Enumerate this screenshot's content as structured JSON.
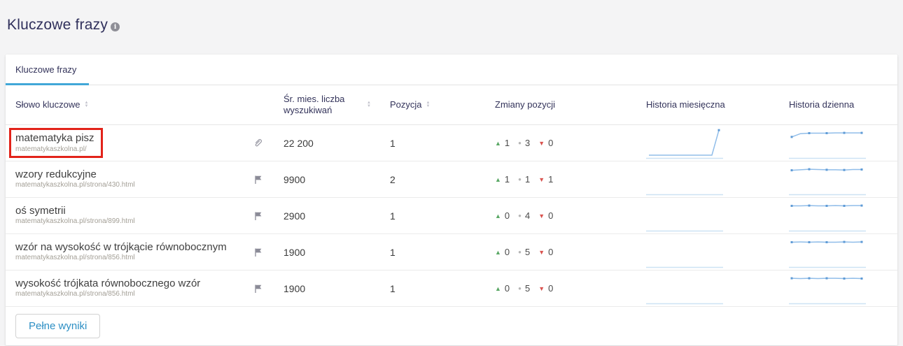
{
  "page": {
    "title": "Kluczowe frazy"
  },
  "tabs": {
    "keywords": {
      "label": "Kluczowe frazy",
      "active": true
    }
  },
  "table": {
    "headers": {
      "keyword": "Słowo kluczowe",
      "volume": "Śr. mies. liczba wyszukiwań",
      "position": "Pozycja",
      "changes": "Zmiany pozycji",
      "monthly": "Historia miesięczna",
      "daily": "Historia dzienna"
    },
    "rows": [
      {
        "keyword": "matematyka pisz",
        "url": "matematykaszkolna.pl/",
        "icon": "link",
        "volume": "22 200",
        "position": "1",
        "up": "1",
        "same": "3",
        "down": "0",
        "highlighted": true,
        "monthly_spark": [
          0.05,
          0.05,
          0.05,
          0.05,
          0.05,
          0.05,
          0.05,
          0.05,
          0.05,
          0.05,
          0.97
        ],
        "daily_spark": [
          0.72,
          0.84,
          0.86,
          0.86,
          0.86,
          0.87,
          0.87,
          0.87,
          0.87
        ]
      },
      {
        "keyword": "wzory redukcyjne",
        "url": "matematykaszkolna.pl/strona/430.html",
        "icon": "flag",
        "volume": "9900",
        "position": "2",
        "up": "1",
        "same": "1",
        "down": "1",
        "highlighted": false,
        "monthly_spark": [],
        "daily_spark": [
          0.83,
          0.85,
          0.87,
          0.86,
          0.85,
          0.85,
          0.84,
          0.86,
          0.86
        ]
      },
      {
        "keyword": "oś symetrii",
        "url": "matematykaszkolna.pl/strona/899.html",
        "icon": "flag",
        "volume": "2900",
        "position": "1",
        "up": "0",
        "same": "4",
        "down": "0",
        "highlighted": false,
        "monthly_spark": [],
        "daily_spark": [
          0.86,
          0.86,
          0.87,
          0.86,
          0.86,
          0.87,
          0.86,
          0.87,
          0.87
        ]
      },
      {
        "keyword": "wzór na wysokość w trójkącie równobocznym",
        "url": "matematykaszkolna.pl/strona/856.html",
        "icon": "flag",
        "volume": "1900",
        "position": "1",
        "up": "0",
        "same": "5",
        "down": "0",
        "highlighted": false,
        "monthly_spark": [],
        "daily_spark": [
          0.86,
          0.87,
          0.86,
          0.87,
          0.86,
          0.86,
          0.87,
          0.86,
          0.87
        ]
      },
      {
        "keyword": "wysokość trójkata równobocznego wzór",
        "url": "matematykaszkolna.pl/strona/856.html",
        "icon": "flag",
        "volume": "1900",
        "position": "1",
        "up": "0",
        "same": "5",
        "down": "0",
        "highlighted": false,
        "monthly_spark": [],
        "daily_spark": [
          0.87,
          0.86,
          0.87,
          0.86,
          0.87,
          0.87,
          0.86,
          0.87,
          0.86
        ]
      }
    ]
  },
  "footer": {
    "full_results_label": "Pełne wyniki"
  },
  "colors": {
    "accent_blue": "#41a7d8",
    "up_green": "#5aa865",
    "down_red": "#d9534f",
    "same_gray": "#b5b5b5",
    "spark_blue": "#90bde9",
    "highlight_red": "#e2231a",
    "button_text": "#2d8fc4"
  }
}
